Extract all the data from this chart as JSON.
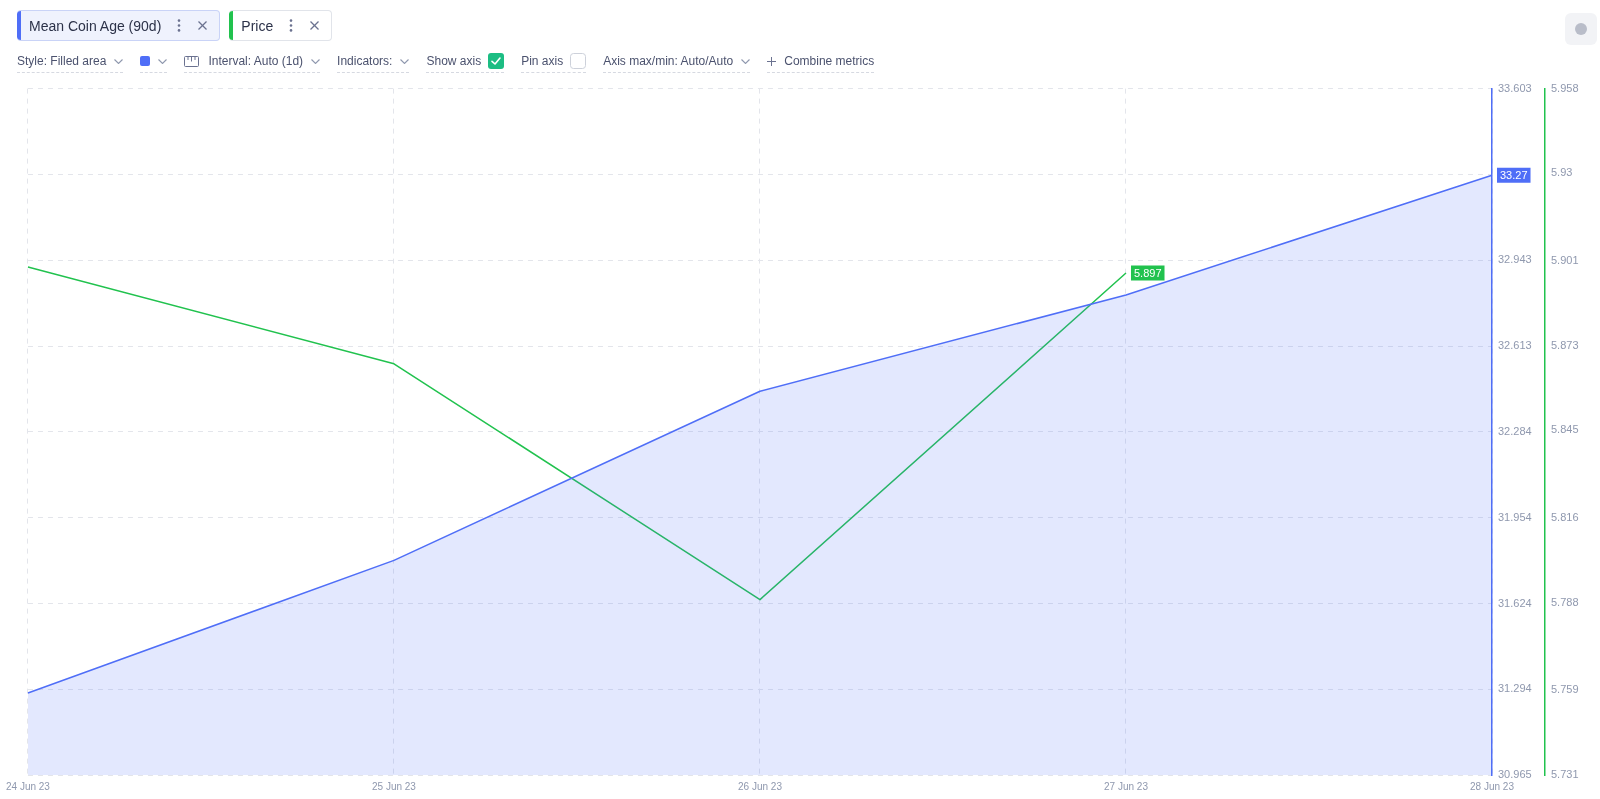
{
  "chart_data": {
    "type": "area",
    "categories": [
      "24 Jun 23",
      "25 Jun 23",
      "26 Jun 23",
      "27 Jun 23",
      "28 Jun 23"
    ],
    "series": [
      {
        "name": "Mean Coin Age (90d)",
        "color": "#4f6ef7",
        "values": [
          31.28,
          31.79,
          32.44,
          32.81,
          33.27
        ],
        "value_labels": [
          null,
          null,
          null,
          null,
          "33.27"
        ]
      },
      {
        "name": "Price",
        "type": "line",
        "color": "#21c24e",
        "axis": "y2",
        "values": [
          5.899,
          5.867,
          5.789,
          5.897,
          null
        ],
        "value_labels": [
          null,
          null,
          null,
          "5.897",
          null
        ]
      }
    ],
    "ylim": [
      30.965,
      33.603
    ],
    "yticks": [
      30.965,
      31.294,
      31.624,
      31.954,
      32.284,
      32.613,
      32.943,
      {
        "value": 33.273,
        "label": null
      },
      33.603
    ],
    "y2lim": [
      5.731,
      5.958
    ],
    "y2ticks": [
      5.731,
      5.759,
      5.788,
      5.816,
      5.845,
      5.873,
      5.901,
      5.93,
      5.958
    ],
    "grid": true,
    "legend": "top left",
    "marker": "none",
    "annotations": [
      "Style: Filled area",
      "Interval: Auto (1d)",
      "Indicators:",
      "Show axis",
      "Pin axis",
      "Axis max/min: Auto/Auto",
      "Combine metrics"
    ]
  }
}
